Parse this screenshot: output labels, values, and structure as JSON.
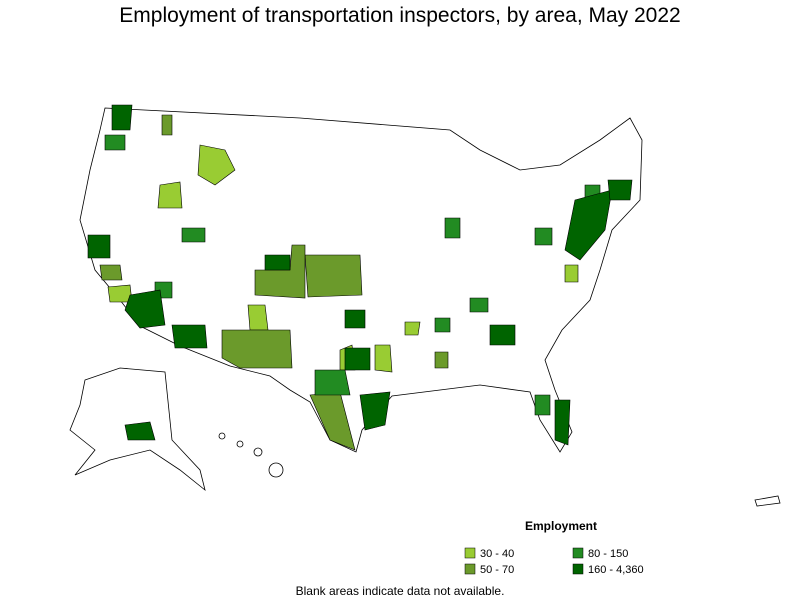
{
  "header": {
    "title": "Employment of transportation inspectors, by area, May 2022"
  },
  "legend": {
    "title": "Employment",
    "items": [
      {
        "label": "30 - 40",
        "color": "#99cc33"
      },
      {
        "label": "50 - 70",
        "color": "#6b9a2b"
      },
      {
        "label": "80 - 150",
        "color": "#228b22"
      },
      {
        "label": "160 - 4,360",
        "color": "#006400"
      }
    ]
  },
  "footnote": "Blank areas indicate data not available."
}
